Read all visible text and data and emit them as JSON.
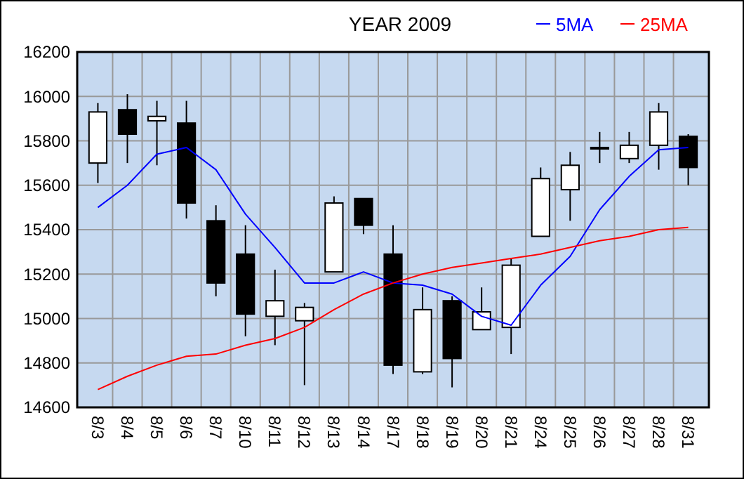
{
  "chart_data": {
    "type": "candlestick",
    "title": "YEAR 2009",
    "categories": [
      "8/3",
      "8/4",
      "8/5",
      "8/6",
      "8/7",
      "8/10",
      "8/11",
      "8/12",
      "8/13",
      "8/14",
      "8/17",
      "8/18",
      "8/19",
      "8/20",
      "8/21",
      "8/24",
      "8/25",
      "8/26",
      "8/27",
      "8/28",
      "8/31"
    ],
    "ohlc": [
      [
        15700,
        15970,
        15610,
        15930
      ],
      [
        15940,
        16010,
        15700,
        15830
      ],
      [
        15890,
        15980,
        15690,
        15910
      ],
      [
        15880,
        15980,
        15450,
        15520
      ],
      [
        15440,
        15510,
        15100,
        15160
      ],
      [
        15290,
        15420,
        14920,
        15020
      ],
      [
        15010,
        15220,
        14880,
        15080
      ],
      [
        14990,
        15070,
        14700,
        15050
      ],
      [
        15210,
        15550,
        15210,
        15520
      ],
      [
        15540,
        15540,
        15380,
        15420
      ],
      [
        15290,
        15420,
        14750,
        14790
      ],
      [
        14760,
        15140,
        14750,
        15040
      ],
      [
        15080,
        15100,
        14690,
        14820
      ],
      [
        14950,
        15140,
        14950,
        15030
      ],
      [
        14960,
        15270,
        14840,
        15240
      ],
      [
        15370,
        15680,
        15370,
        15630
      ],
      [
        15580,
        15750,
        15440,
        15690
      ],
      [
        15770,
        15840,
        15700,
        15770
      ],
      [
        15720,
        15840,
        15700,
        15780
      ],
      [
        15780,
        15970,
        15670,
        15930
      ],
      [
        15820,
        15830,
        15600,
        15680
      ]
    ],
    "series": [
      {
        "name": "5MA",
        "type": "line",
        "color": "#0000ff",
        "values": [
          15500,
          15600,
          15740,
          15770,
          15670,
          15470,
          15320,
          15160,
          15160,
          15210,
          15160,
          15150,
          15110,
          15010,
          14970,
          15150,
          15280,
          15490,
          15640,
          15760,
          15770
        ]
      },
      {
        "name": "25MA",
        "type": "line",
        "color": "#ff0000",
        "values": [
          14680,
          14740,
          14790,
          14830,
          14840,
          14880,
          14910,
          14960,
          15040,
          15110,
          15160,
          15200,
          15230,
          15250,
          15270,
          15290,
          15320,
          15350,
          15370,
          15400,
          15410
        ]
      }
    ],
    "ylim": [
      14600,
      16200
    ],
    "yticks": [
      14600,
      14800,
      15000,
      15200,
      15400,
      15600,
      15800,
      16000,
      16200
    ],
    "grid": true,
    "legend": "top right"
  }
}
